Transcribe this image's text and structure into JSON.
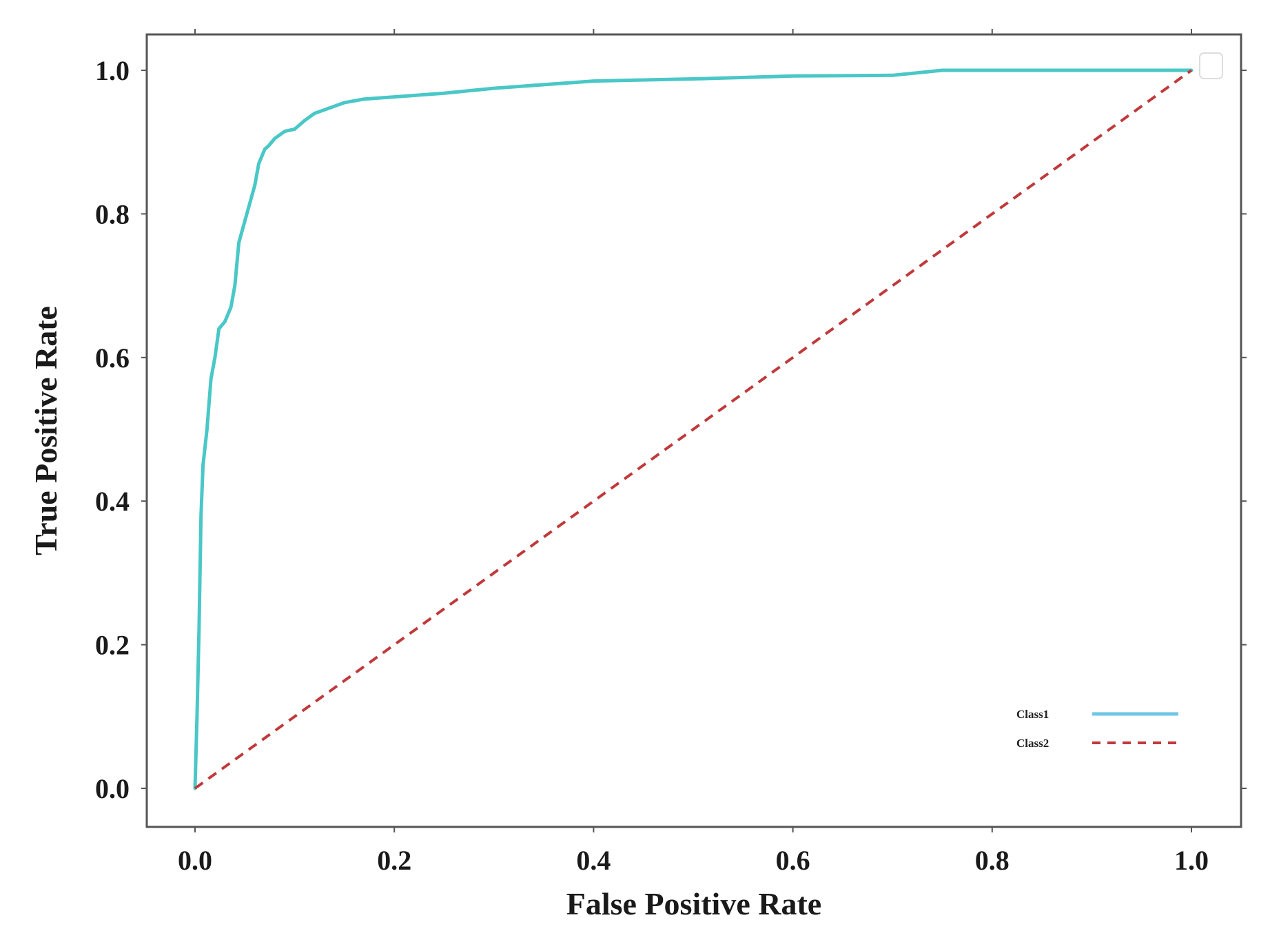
{
  "chart_data": {
    "type": "line",
    "title": "",
    "xlabel": "False Positive Rate",
    "ylabel": "True Positive Rate",
    "xlim": [
      -0.05,
      1.05
    ],
    "ylim": [
      -0.05,
      1.05
    ],
    "x_ticks": [
      "0.0",
      "0.2",
      "0.4",
      "0.6",
      "0.8",
      "1.0"
    ],
    "y_ticks": [
      "0.0",
      "0.2",
      "0.4",
      "0.6",
      "0.8",
      "1.0"
    ],
    "grid": false,
    "legend_position": "lower right",
    "series": [
      {
        "name": "Class1",
        "style": "solid",
        "color": "#4ac7c7",
        "x": [
          0.0,
          0.002,
          0.004,
          0.006,
          0.008,
          0.012,
          0.016,
          0.02,
          0.024,
          0.03,
          0.036,
          0.04,
          0.044,
          0.048,
          0.05,
          0.054,
          0.06,
          0.064,
          0.07,
          0.074,
          0.08,
          0.09,
          0.1,
          0.11,
          0.12,
          0.13,
          0.15,
          0.17,
          0.2,
          0.25,
          0.3,
          0.4,
          0.5,
          0.6,
          0.7,
          0.75,
          0.8,
          0.9,
          1.0
        ],
        "y": [
          0.0,
          0.1,
          0.22,
          0.38,
          0.45,
          0.5,
          0.57,
          0.6,
          0.64,
          0.65,
          0.67,
          0.7,
          0.76,
          0.78,
          0.79,
          0.81,
          0.84,
          0.87,
          0.89,
          0.895,
          0.905,
          0.915,
          0.918,
          0.93,
          0.94,
          0.945,
          0.955,
          0.96,
          0.963,
          0.968,
          0.975,
          0.985,
          0.988,
          0.992,
          0.993,
          1.0,
          1.0,
          1.0,
          1.0
        ]
      },
      {
        "name": "Class2",
        "style": "dashed",
        "color": "#c0393b",
        "x": [
          0.0,
          1.0
        ],
        "y": [
          0.0,
          1.0
        ]
      }
    ]
  }
}
